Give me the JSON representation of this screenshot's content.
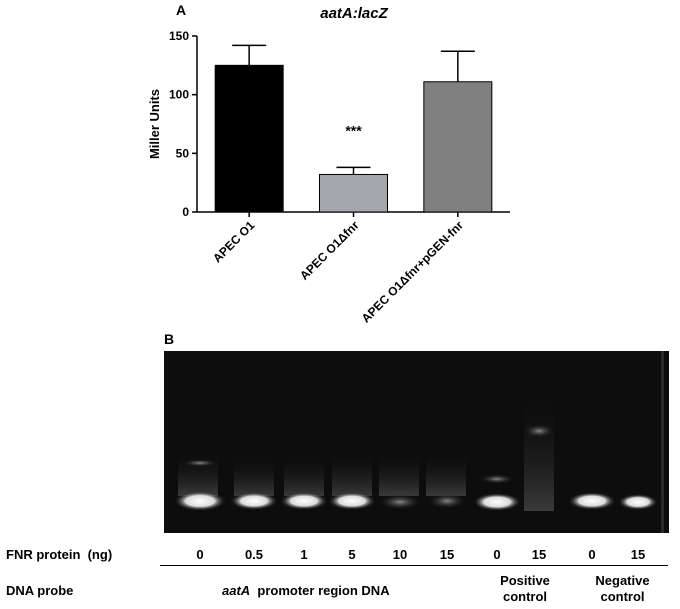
{
  "panelA": {
    "label": "A",
    "chart_data": {
      "type": "bar",
      "title": "aatA:lacZ",
      "ylabel": "Miller Units",
      "xlabel": "",
      "ylim": [
        0,
        150
      ],
      "yticks": [
        0,
        50,
        100,
        150
      ],
      "categories": [
        "APEC O1",
        "APEC O1Δfnr",
        "APEC O1Δfnr+pGEN-fnr"
      ],
      "values": [
        125,
        32,
        111
      ],
      "errors": [
        17,
        6,
        26
      ],
      "bar_colors": [
        "#000000",
        "#a6a6ad",
        "#808080"
      ],
      "annotations": [
        {
          "category_index": 1,
          "text": "***"
        }
      ]
    }
  },
  "panelB": {
    "label": "B",
    "fnr_row_label": "FNR protein  (ng)",
    "fnr_values": [
      "0",
      "0.5",
      "1",
      "5",
      "10",
      "15",
      "0",
      "15",
      "0",
      "15"
    ],
    "probe_row_label": "DNA probe",
    "probe_main_italic": "aatA",
    "probe_main_rest": "  promoter region DNA",
    "positive_control": [
      "Positive",
      "control"
    ],
    "negative_control": [
      "Negative",
      "control"
    ]
  }
}
